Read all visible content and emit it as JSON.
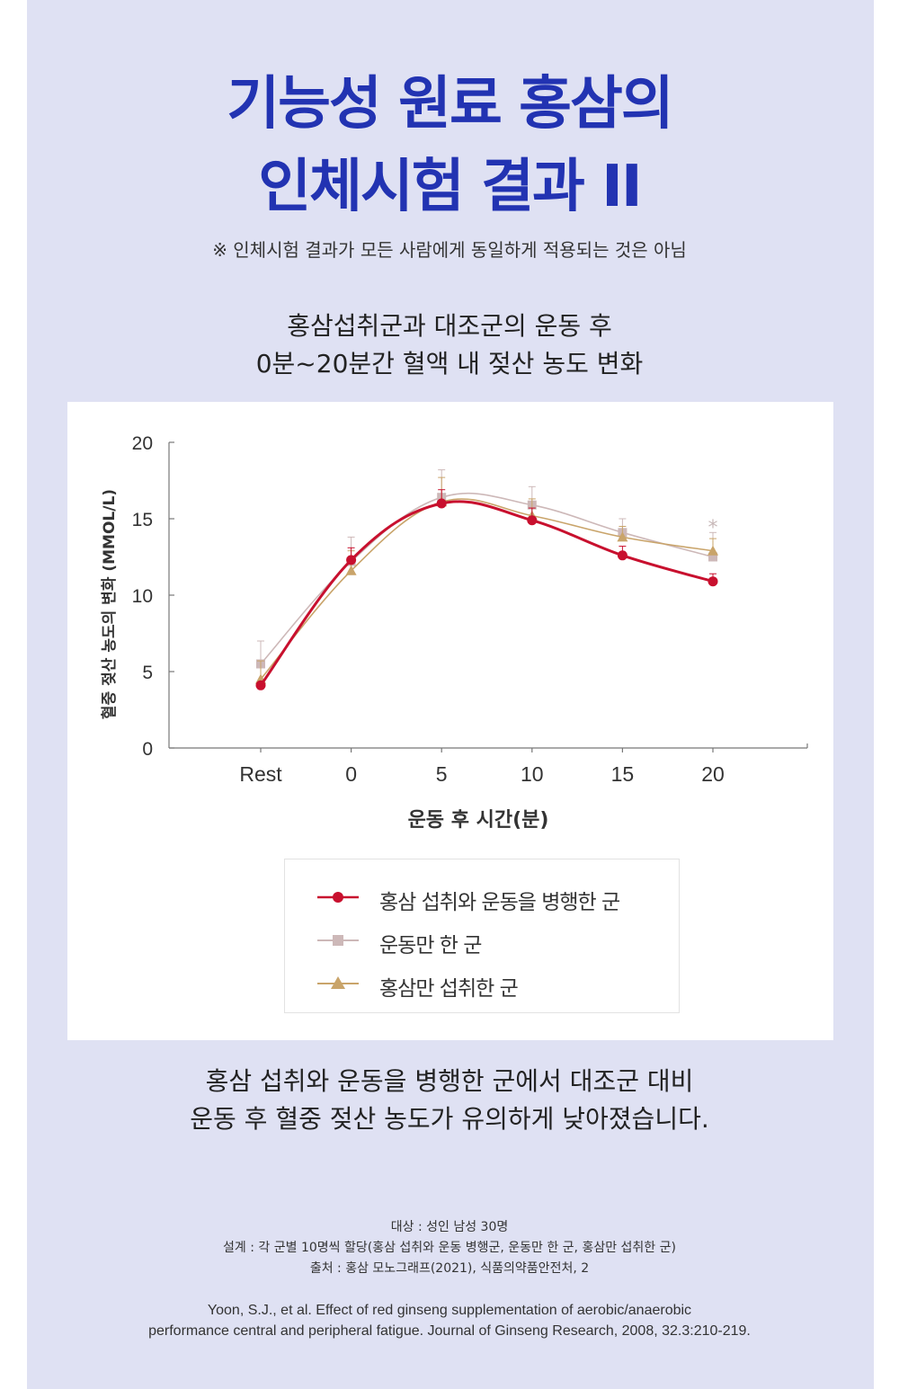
{
  "title": {
    "line1": "기능성 원료 홍삼의",
    "line2": "인체시험 결과 II"
  },
  "disclaimer": "※ 인체시험 결과가 모든 사람에게 동일하게 적용되는 것은 아님",
  "subtitle": {
    "line1": "홍삼섭취군과 대조군의 운동 후",
    "line2": "0분~20분간 혈액 내 젖산 농도 변화"
  },
  "chart_data": {
    "type": "line",
    "categories": [
      "Rest",
      "0",
      "5",
      "10",
      "15",
      "20"
    ],
    "xlabel": "운동 후 시간(분)",
    "ylabel": "혈중 젖산 농도의 변화 (MMOL/L)",
    "ylim": [
      0,
      20
    ],
    "yticks": [
      "0",
      "5",
      "10",
      "15",
      "20"
    ],
    "grid": false,
    "legend_position": "bottom",
    "series": [
      {
        "name": "홍삼 섭취와 운동을 병행한 군",
        "marker": "circle",
        "color": "#c8102e",
        "values": [
          4.1,
          12.3,
          16.0,
          14.9,
          12.6,
          10.9
        ],
        "errors": [
          0,
          0.8,
          0.9,
          0.8,
          0.6,
          0.5
        ]
      },
      {
        "name": "운동만 한 군",
        "marker": "square",
        "color": "#cdb8b8",
        "values": [
          5.5,
          12.2,
          16.4,
          15.9,
          14.1,
          12.5
        ],
        "errors": [
          1.5,
          1.6,
          1.8,
          1.2,
          0.9,
          1.6
        ]
      },
      {
        "name": "홍삼만 섭취한 군",
        "marker": "triangle",
        "color": "#c9a46a",
        "values": [
          4.5,
          11.6,
          16.1,
          15.2,
          13.8,
          12.9
        ],
        "errors": [
          1.2,
          1.3,
          1.6,
          1.1,
          0.7,
          0.8
        ]
      }
    ],
    "annotations": [
      "*"
    ]
  },
  "conclusion": {
    "line1": "홍삼 섭취와 운동을 병행한 군에서 대조군 대비",
    "line2": "운동 후 혈중 젖산 농도가 유의하게 낮아졌습니다."
  },
  "notes": {
    "subjects": "대상 : 성인 남성 30명",
    "design": "설계 : 각 군별 10명씩 할당(홍삼 섭취와 운동 병행군, 운동만 한 군, 홍삼만 섭취한 군)",
    "source": "출처 : 홍삼 모노그래프(2021), 식품의약품안전처, 2"
  },
  "reference": {
    "line1": "Yoon, S.J., et al. Effect of red ginseng supplementation of aerobic/anaerobic",
    "line2": "performance central and peripheral fatigue. Journal of Ginseng Research, 2008, 32.3:210-219."
  }
}
